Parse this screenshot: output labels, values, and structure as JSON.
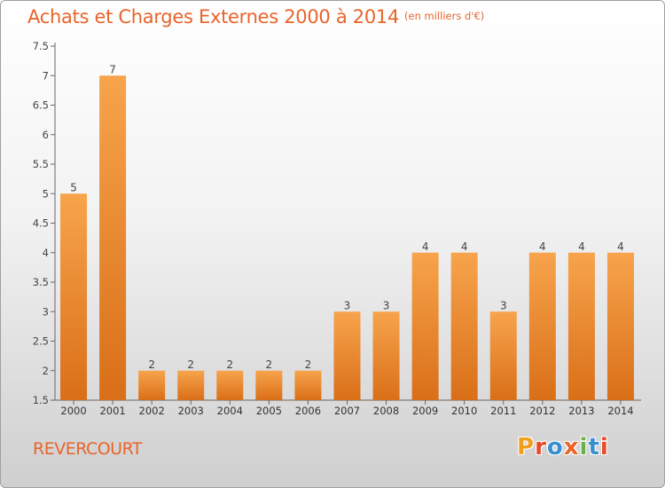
{
  "header": {
    "title": "Achats et Charges Externes 2000 à 2014",
    "unit": "(en milliers d'€)"
  },
  "footer": {
    "commune": "REVERCOURT",
    "brand": "Proxiti"
  },
  "colors": {
    "accent": "#e8642a",
    "bar_light": "#f7a44c",
    "bar_dark": "#d96f18",
    "brand_letters": [
      "#f0a020",
      "#e84a2a",
      "#3a8fd0",
      "#e8642a",
      "#6ab04c",
      "#3a8fd0",
      "#e84a2a"
    ]
  },
  "chart_data": {
    "type": "bar",
    "categories": [
      "2000",
      "2001",
      "2002",
      "2003",
      "2004",
      "2005",
      "2006",
      "2007",
      "2008",
      "2009",
      "2010",
      "2011",
      "2012",
      "2013",
      "2014"
    ],
    "values": [
      5,
      7,
      2,
      2,
      2,
      2,
      2,
      3,
      3,
      4,
      4,
      3,
      4,
      4,
      4
    ],
    "data_labels": [
      "5",
      "7",
      "2",
      "2",
      "2",
      "2",
      "2",
      "3",
      "3",
      "4",
      "4",
      "3",
      "4",
      "4",
      "4"
    ],
    "title": "Achats et Charges Externes 2000 à 2014",
    "ylim": [
      1.5,
      7.5
    ],
    "yticks": [
      "1.5",
      "2",
      "2.5",
      "3",
      "3.5",
      "4",
      "4.5",
      "5",
      "5.5",
      "6",
      "6.5",
      "7",
      "7.5"
    ],
    "grid": false,
    "legend": "none"
  }
}
